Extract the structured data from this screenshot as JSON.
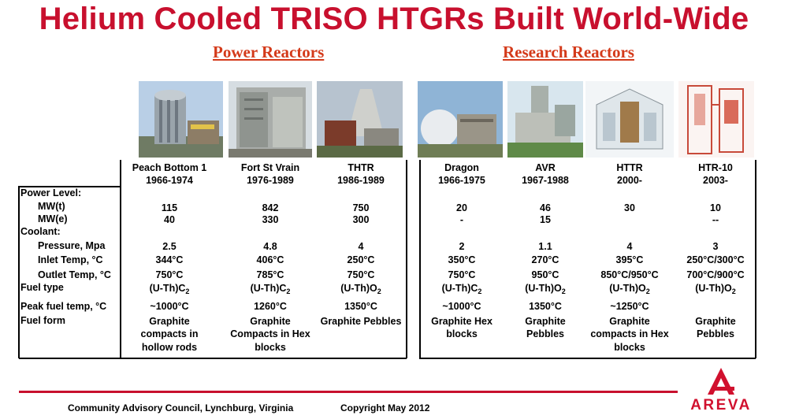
{
  "title": "Helium Cooled  TRISO  HTGRs Built World-Wide",
  "sections": {
    "power": "Power Reactors",
    "research": "Research Reactors"
  },
  "reactors": [
    {
      "name": "Peach Bottom 1",
      "years": "1966-1974",
      "mwt": "115",
      "mwe": "40",
      "pressure": "2.5",
      "inlet": "344°C",
      "outlet": "750°C",
      "fuel_type": "(U-Th)C",
      "fuel_sub": "2",
      "peak": "~1000°C",
      "form1": "Graphite",
      "form2": "compacts in",
      "form3": "hollow rods"
    },
    {
      "name": "Fort St Vrain",
      "years": "1976-1989",
      "mwt": "842",
      "mwe": "330",
      "pressure": "4.8",
      "inlet": "406°C",
      "outlet": "785°C",
      "fuel_type": "(U-Th)C",
      "fuel_sub": "2",
      "peak": "1260°C",
      "form1": "Graphite",
      "form2": "Compacts in Hex",
      "form3": "blocks"
    },
    {
      "name": "THTR",
      "years": "1986-1989",
      "mwt": "750",
      "mwe": "300",
      "pressure": "4",
      "inlet": "250°C",
      "outlet": "750°C",
      "fuel_type": "(U-Th)O",
      "fuel_sub": "2",
      "peak": "1350°C",
      "form1": "Graphite Pebbles",
      "form2": "",
      "form3": ""
    },
    {
      "name": "Dragon",
      "years": "1966-1975",
      "mwt": "20",
      "mwe": "-",
      "pressure": "2",
      "inlet": "350°C",
      "outlet": "750°C",
      "fuel_type": "(U-Th)C",
      "fuel_sub": "2",
      "peak": "~1000°C",
      "form1": "Graphite Hex",
      "form2": "blocks",
      "form3": ""
    },
    {
      "name": "AVR",
      "years": "1967-1988",
      "mwt": "46",
      "mwe": "15",
      "pressure": "1.1",
      "inlet": "270°C",
      "outlet": "950°C",
      "fuel_type": "(U-Th)O",
      "fuel_sub": "2",
      "peak": "1350°C",
      "form1": "Graphite",
      "form2": "Pebbles",
      "form3": ""
    },
    {
      "name": "HTTR",
      "years": "2000-",
      "mwt": "30",
      "mwe": "",
      "pressure": "4",
      "inlet": "395°C",
      "outlet": "850°C/950°C",
      "fuel_type": "(U-Th)O",
      "fuel_sub": "2",
      "peak": "~1250°C",
      "form1": "Graphite",
      "form2": "compacts in Hex",
      "form3": "blocks"
    },
    {
      "name": "HTR-10",
      "years": "2003-",
      "mwt": "10",
      "mwe": "--",
      "pressure": "3",
      "inlet": "250°C/300°C",
      "outlet": "700°C/900°C",
      "fuel_type": "(U-Th)O",
      "fuel_sub": "2",
      "peak": "",
      "form1": "Graphite",
      "form2": "Pebbles",
      "form3": ""
    }
  ],
  "row_labels": {
    "power_level": "Power Level:",
    "mwt": "MW(t)",
    "mwe": "MW(e)",
    "coolant": "Coolant:",
    "pressure": "Pressure, Mpa",
    "inlet": "Inlet Temp, °C",
    "outlet": "Outlet Temp, °C",
    "fuel_type": "Fuel type",
    "peak": "Peak fuel temp, °C",
    "fuel_form": "Fuel form"
  },
  "footer": {
    "council": "Community Advisory Council, Lynchburg, Virginia",
    "copyright": "Copyright May 2012",
    "logo": "AREVA"
  },
  "colors": {
    "title": "#c8102e",
    "section": "#d43a1a",
    "logo": "#d1102e"
  }
}
